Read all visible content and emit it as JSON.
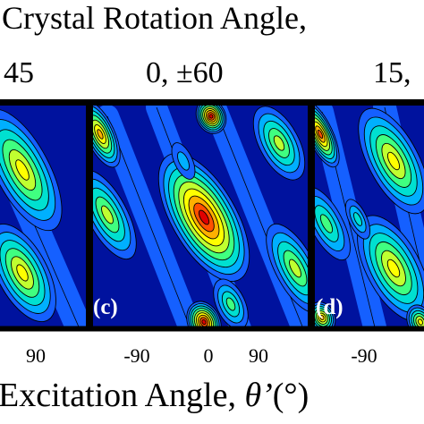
{
  "chart_data": {
    "type": "heatmap",
    "title": "Crystal Rotation Angle, ",
    "xlabel": "Excitation Angle, ",
    "xlabel_symbol": "θ’",
    "xlabel_unit": "(°)",
    "panels": [
      {
        "id": "b",
        "label": "",
        "rotation": "45",
        "xticks": [
          "90"
        ],
        "xlim": [
          -90,
          90
        ]
      },
      {
        "id": "c",
        "label": "(c)",
        "rotation": "0, ±60",
        "xticks": [
          "-90",
          "0",
          "90"
        ],
        "xlim": [
          -90,
          90
        ]
      },
      {
        "id": "d",
        "label": "(d)",
        "rotation": "15,",
        "xticks": [
          "-90"
        ],
        "xlim": [
          -90,
          90
        ]
      }
    ],
    "colormap": "jet",
    "contour_lines": true
  },
  "colors": {
    "background": "#00129e",
    "frame": "#000000"
  }
}
